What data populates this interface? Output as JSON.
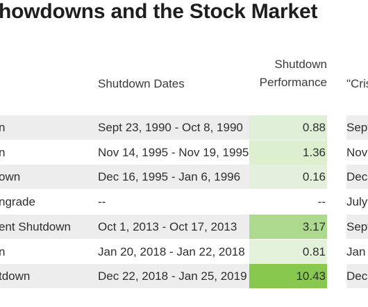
{
  "title": "howdowns and the Stock Market",
  "headers": {
    "dates": "Shutdown Dates",
    "perf_line1": "Shutdown",
    "perf_line2": "Performance",
    "crisis": "\"Cris"
  },
  "rows": [
    {
      "name": "n",
      "dates": "Sept 23, 1990 - Oct 8, 1990",
      "performance": "0.88",
      "crisis": "Sept",
      "perf_color": "#dfeed6",
      "shaded": true
    },
    {
      "name": "n",
      "dates": "Nov 14, 1995 - Nov 19, 1995",
      "performance": "1.36",
      "crisis": "Nov",
      "perf_color": "#dcefcf",
      "shaded": false
    },
    {
      "name": "own",
      "dates": "Dec 16, 1995 - Jan 6, 1996",
      "performance": "0.16",
      "crisis": "Dec",
      "perf_color": "#e4f0dc",
      "shaded": true
    },
    {
      "name": "ngrade",
      "dates": "--",
      "performance": "--",
      "crisis": "July",
      "perf_color": "#ffffff",
      "shaded": false
    },
    {
      "name": "ent Shutdown",
      "dates": "Oct 1, 2013 - Oct 17, 2013",
      "performance": "3.17",
      "crisis": "Sept",
      "perf_color": "#add98f",
      "shaded": true
    },
    {
      "name": "n",
      "dates": "Jan 20, 2018 - Jan 22, 2018",
      "performance": "0.81",
      "crisis": "Jan",
      "perf_color": "#e4f1db",
      "shaded": false
    },
    {
      "name": "tdown",
      "dates": "Dec 22, 2018 - Jan 25, 2019",
      "performance": "10.43",
      "crisis": "Dec",
      "perf_color": "#87c94f",
      "shaded": true
    }
  ]
}
